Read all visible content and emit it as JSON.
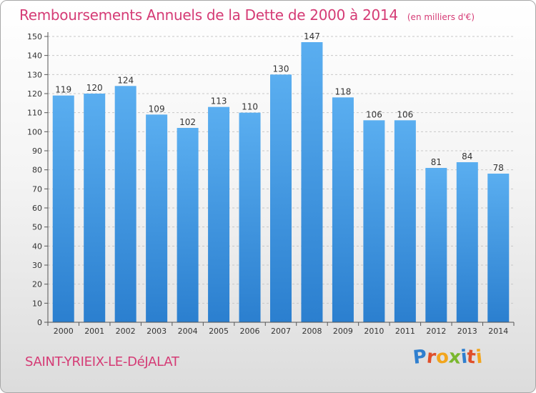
{
  "chart_data": {
    "type": "bar",
    "title": "Remboursements Annuels de la Dette de 2000 à 2014",
    "subtitle": "(en milliers d'€)",
    "categories": [
      "2000",
      "2001",
      "2002",
      "2003",
      "2004",
      "2005",
      "2006",
      "2007",
      "2008",
      "2009",
      "2010",
      "2011",
      "2012",
      "2013",
      "2014"
    ],
    "values": [
      119,
      120,
      124,
      109,
      102,
      113,
      110,
      130,
      147,
      118,
      106,
      106,
      81,
      84,
      78
    ],
    "yticks": [
      0,
      10,
      20,
      30,
      40,
      50,
      60,
      70,
      80,
      90,
      100,
      110,
      120,
      130,
      140,
      150
    ],
    "ylim": [
      0,
      150
    ],
    "xlabel": "",
    "ylabel": "",
    "grid": true,
    "bar_color": "#3f8fd8"
  },
  "footer": {
    "town": "SAINT-YRIEIX-LE-DéJALAT",
    "logo_letters": [
      "P",
      "r",
      "o",
      "x",
      "i",
      "t",
      "i"
    ],
    "logo_colors": [
      "#2f7fcf",
      "#e04f2a",
      "#f2a51d",
      "#7ab72e",
      "#2f7fcf",
      "#e04f2a",
      "#f2a51d"
    ]
  }
}
